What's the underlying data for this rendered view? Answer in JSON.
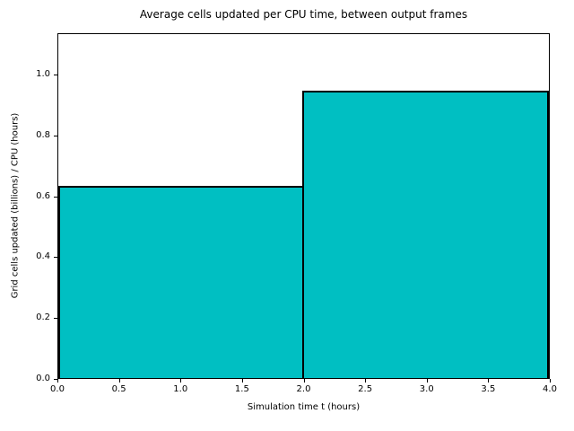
{
  "chart_data": {
    "type": "bar",
    "title": "Average cells updated per CPU time, between output frames",
    "xlabel": "Simulation time t (hours)",
    "ylabel": "Grid cells updated (billions) / CPU (hours)",
    "bin_edges": [
      0,
      2,
      4
    ],
    "values": [
      0.635,
      0.95
    ],
    "xlim": [
      0,
      4
    ],
    "ylim": [
      0,
      1.136
    ],
    "x_tick_labels": [
      "0.0",
      "0.5",
      "1.0",
      "1.5",
      "2.0",
      "2.5",
      "3.0",
      "3.5",
      "4.0"
    ],
    "y_tick_labels": [
      "0.0",
      "0.2",
      "0.4",
      "0.6",
      "0.8",
      "1.0"
    ],
    "bar_fill_color": "#00bfc2",
    "bar_edge_color": "#000000",
    "grid": false,
    "legend_position": "none"
  }
}
